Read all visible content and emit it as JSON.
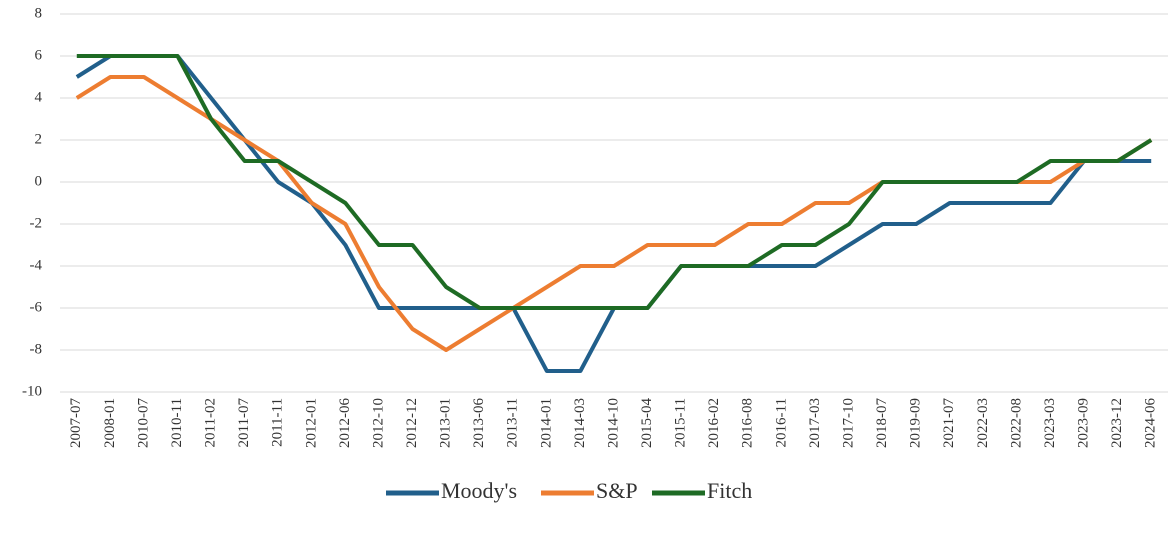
{
  "chart_data": {
    "type": "line",
    "categories": [
      "2007-07",
      "2008-01",
      "2010-07",
      "2010-11",
      "2011-02",
      "2011-07",
      "2011-11",
      "2012-01",
      "2012-06",
      "2012-10",
      "2012-12",
      "2013-01",
      "2013-06",
      "2013-11",
      "2014-01",
      "2014-03",
      "2014-10",
      "2015-04",
      "2015-11",
      "2016-02",
      "2016-08",
      "2016-11",
      "2017-03",
      "2017-10",
      "2018-07",
      "2019-09",
      "2021-07",
      "2022-03",
      "2022-08",
      "2023-03",
      "2023-09",
      "2023-12",
      "2024-06"
    ],
    "series": [
      {
        "name": "Moody's",
        "color": "#215f8b",
        "values": [
          5,
          6,
          6,
          6,
          4,
          2,
          0,
          -1,
          -3,
          -6,
          -6,
          -6,
          -6,
          -6,
          -9,
          -9,
          -6,
          -6,
          -4,
          -4,
          -4,
          -4,
          -4,
          -3,
          -2,
          -2,
          -1,
          -1,
          -1,
          -1,
          1,
          1,
          1
        ]
      },
      {
        "name": "S&P",
        "color": "#ed7d31",
        "values": [
          4,
          5,
          5,
          4,
          3,
          2,
          1,
          -1,
          -2,
          -5,
          -7,
          -8,
          -7,
          -6,
          -5,
          -4,
          -4,
          -3,
          -3,
          -3,
          -2,
          -2,
          -1,
          -1,
          0,
          0,
          0,
          0,
          0,
          0,
          1,
          1,
          2
        ]
      },
      {
        "name": "Fitch",
        "color": "#1e6b24",
        "values": [
          6,
          6,
          6,
          6,
          3,
          1,
          1,
          0,
          -1,
          -3,
          -3,
          -5,
          -6,
          -6,
          -6,
          -6,
          -6,
          -6,
          -4,
          -4,
          -4,
          -3,
          -3,
          -2,
          0,
          0,
          0,
          0,
          0,
          1,
          1,
          1,
          2
        ]
      }
    ],
    "ylim": [
      -10,
      8
    ],
    "yticks": [
      -10,
      -8,
      -6,
      -4,
      -2,
      0,
      2,
      4,
      6,
      8
    ],
    "grid": true,
    "legend": "bottom"
  }
}
